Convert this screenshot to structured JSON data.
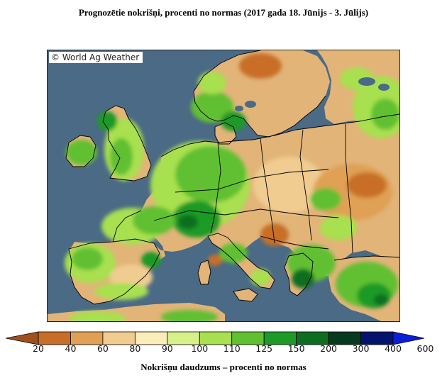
{
  "title": "Prognozētie nokrišņi, procenti no normas (2017 gada 18. Jūnijs - 3. Jūlijs)",
  "watermark": "© World Ag Weather",
  "legend": {
    "caption": "Nokrišņu daudzums – procenti no normas",
    "ticks": [
      "20",
      "40",
      "60",
      "80",
      "90",
      "100",
      "110",
      "125",
      "150",
      "200",
      "300",
      "400",
      "600"
    ],
    "colors": [
      "#a0501f",
      "#c86e28",
      "#e0a055",
      "#f0cc90",
      "#faedba",
      "#d8f08a",
      "#a8e050",
      "#60c030",
      "#1e9a28",
      "#0d6e20",
      "#063a1e",
      "#04146e",
      "#0a20d8"
    ]
  },
  "colors": {
    "sea": "#4a6a86",
    "land_background": "#e2b478",
    "border": "#000000"
  }
}
